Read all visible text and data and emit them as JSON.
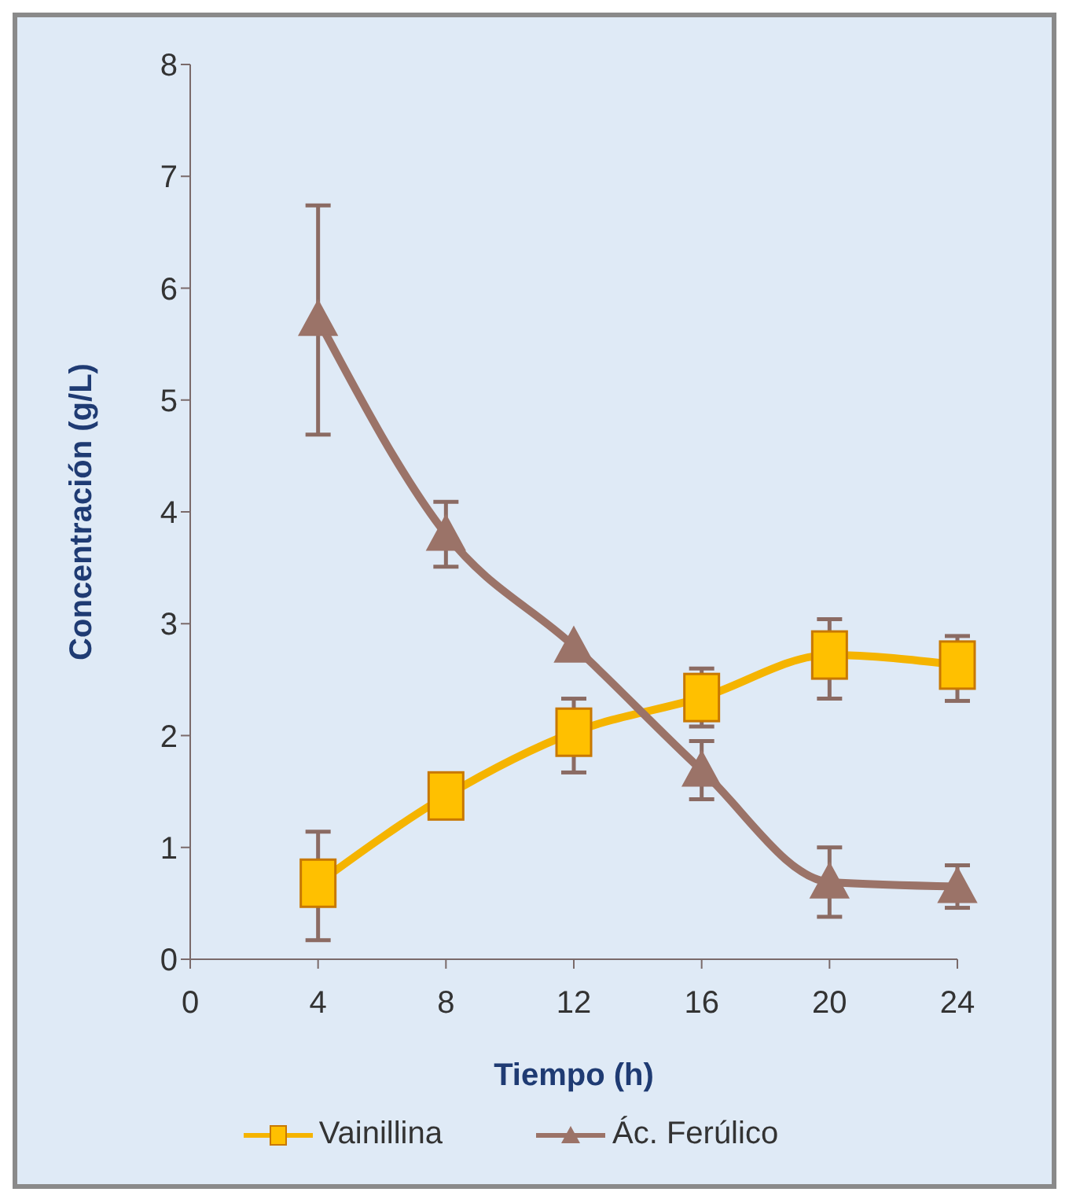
{
  "chart_data": {
    "type": "line",
    "xlabel": "Tiempo (h)",
    "ylabel": "Concentración (g/L)",
    "x": [
      4,
      8,
      12,
      16,
      20,
      24
    ],
    "xlim": [
      0,
      24
    ],
    "xticks": [
      0,
      4,
      8,
      12,
      16,
      20,
      24
    ],
    "ylim": [
      0,
      8
    ],
    "yticks": [
      0,
      1,
      2,
      3,
      4,
      5,
      6,
      7,
      8
    ],
    "grid": false,
    "legend": "bottom",
    "series": [
      {
        "name": "Vainillina",
        "color": "#f5b400",
        "marker": "square",
        "values": [
          0.68,
          1.46,
          2.03,
          2.34,
          2.72,
          2.63
        ],
        "errors": [
          [
            0.17,
            1.14
          ],
          null,
          [
            1.67,
            2.33
          ],
          [
            2.08,
            2.6
          ],
          [
            2.33,
            3.04
          ],
          [
            2.31,
            2.89
          ]
        ]
      },
      {
        "name": "Ác. Ferúlico",
        "color": "#9b7368",
        "marker": "triangle",
        "values": [
          5.72,
          3.8,
          2.8,
          1.69,
          0.69,
          0.65
        ],
        "errors": [
          [
            4.69,
            6.74
          ],
          [
            3.51,
            4.09
          ],
          null,
          [
            1.43,
            1.95
          ],
          [
            0.38,
            1.0
          ],
          [
            0.46,
            0.84
          ]
        ]
      }
    ]
  }
}
